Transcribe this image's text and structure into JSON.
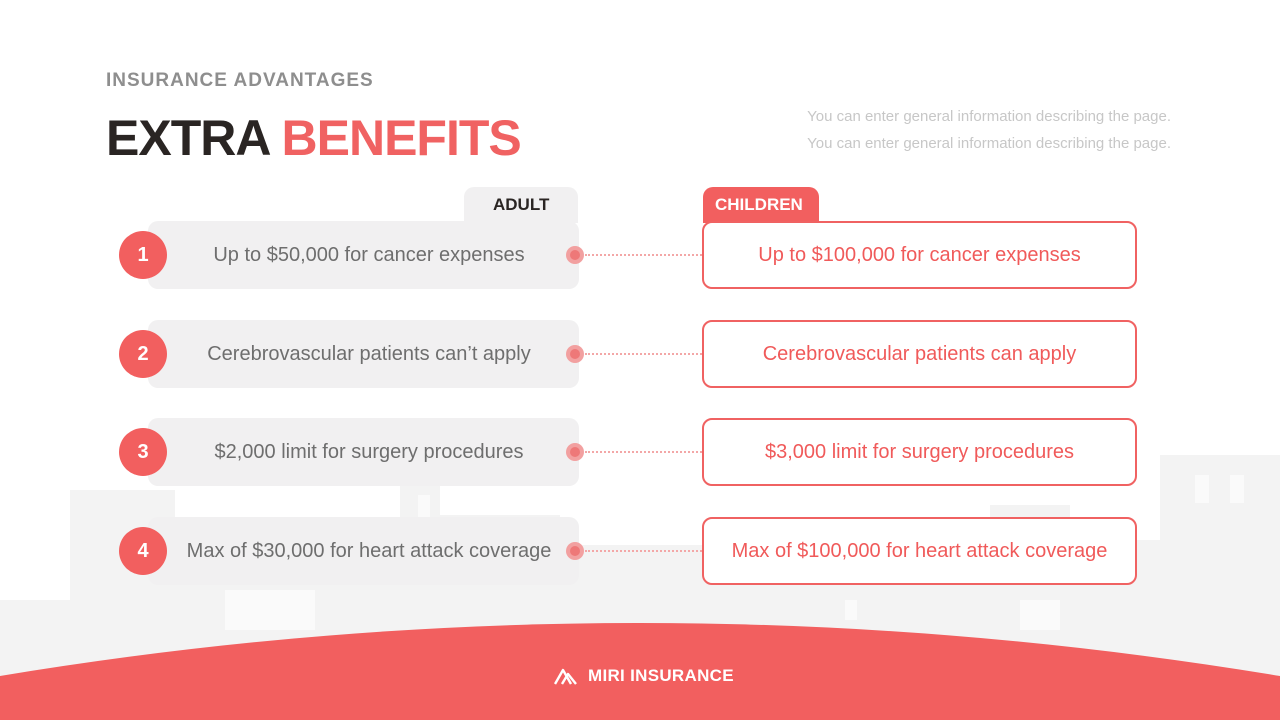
{
  "header": {
    "eyebrow": "INSURANCE ADVANTAGES",
    "title_main": "EXTRA",
    "title_accent": "BENEFITS",
    "description": [
      "You can enter general information describing the page.",
      "You can enter general information describing the page."
    ]
  },
  "columns": {
    "adult_label": "ADULT",
    "children_label": "CHILDREN"
  },
  "rows": [
    {
      "number": "1",
      "adult": "Up to $50,000 for cancer expenses",
      "children": "Up to $100,000 for cancer expenses"
    },
    {
      "number": "2",
      "adult": "Cerebrovascular patients can’t apply",
      "children": "Cerebrovascular patients can apply"
    },
    {
      "number": "3",
      "adult": "$2,000 limit for surgery procedures",
      "children": "$3,000 limit for surgery procedures"
    },
    {
      "number": "4",
      "adult": "Max of $30,000 for heart attack coverage",
      "children": "Max of $100,000 for heart attack coverage"
    }
  ],
  "footer": {
    "brand": "MIRI INSURANCE",
    "logo_icon": "mountain-logo-icon"
  },
  "colors": {
    "accent": "#f06262",
    "dark_text": "#2a2523",
    "muted_text": "#8e8e8e",
    "panel_gray": "#f1f0f1"
  }
}
